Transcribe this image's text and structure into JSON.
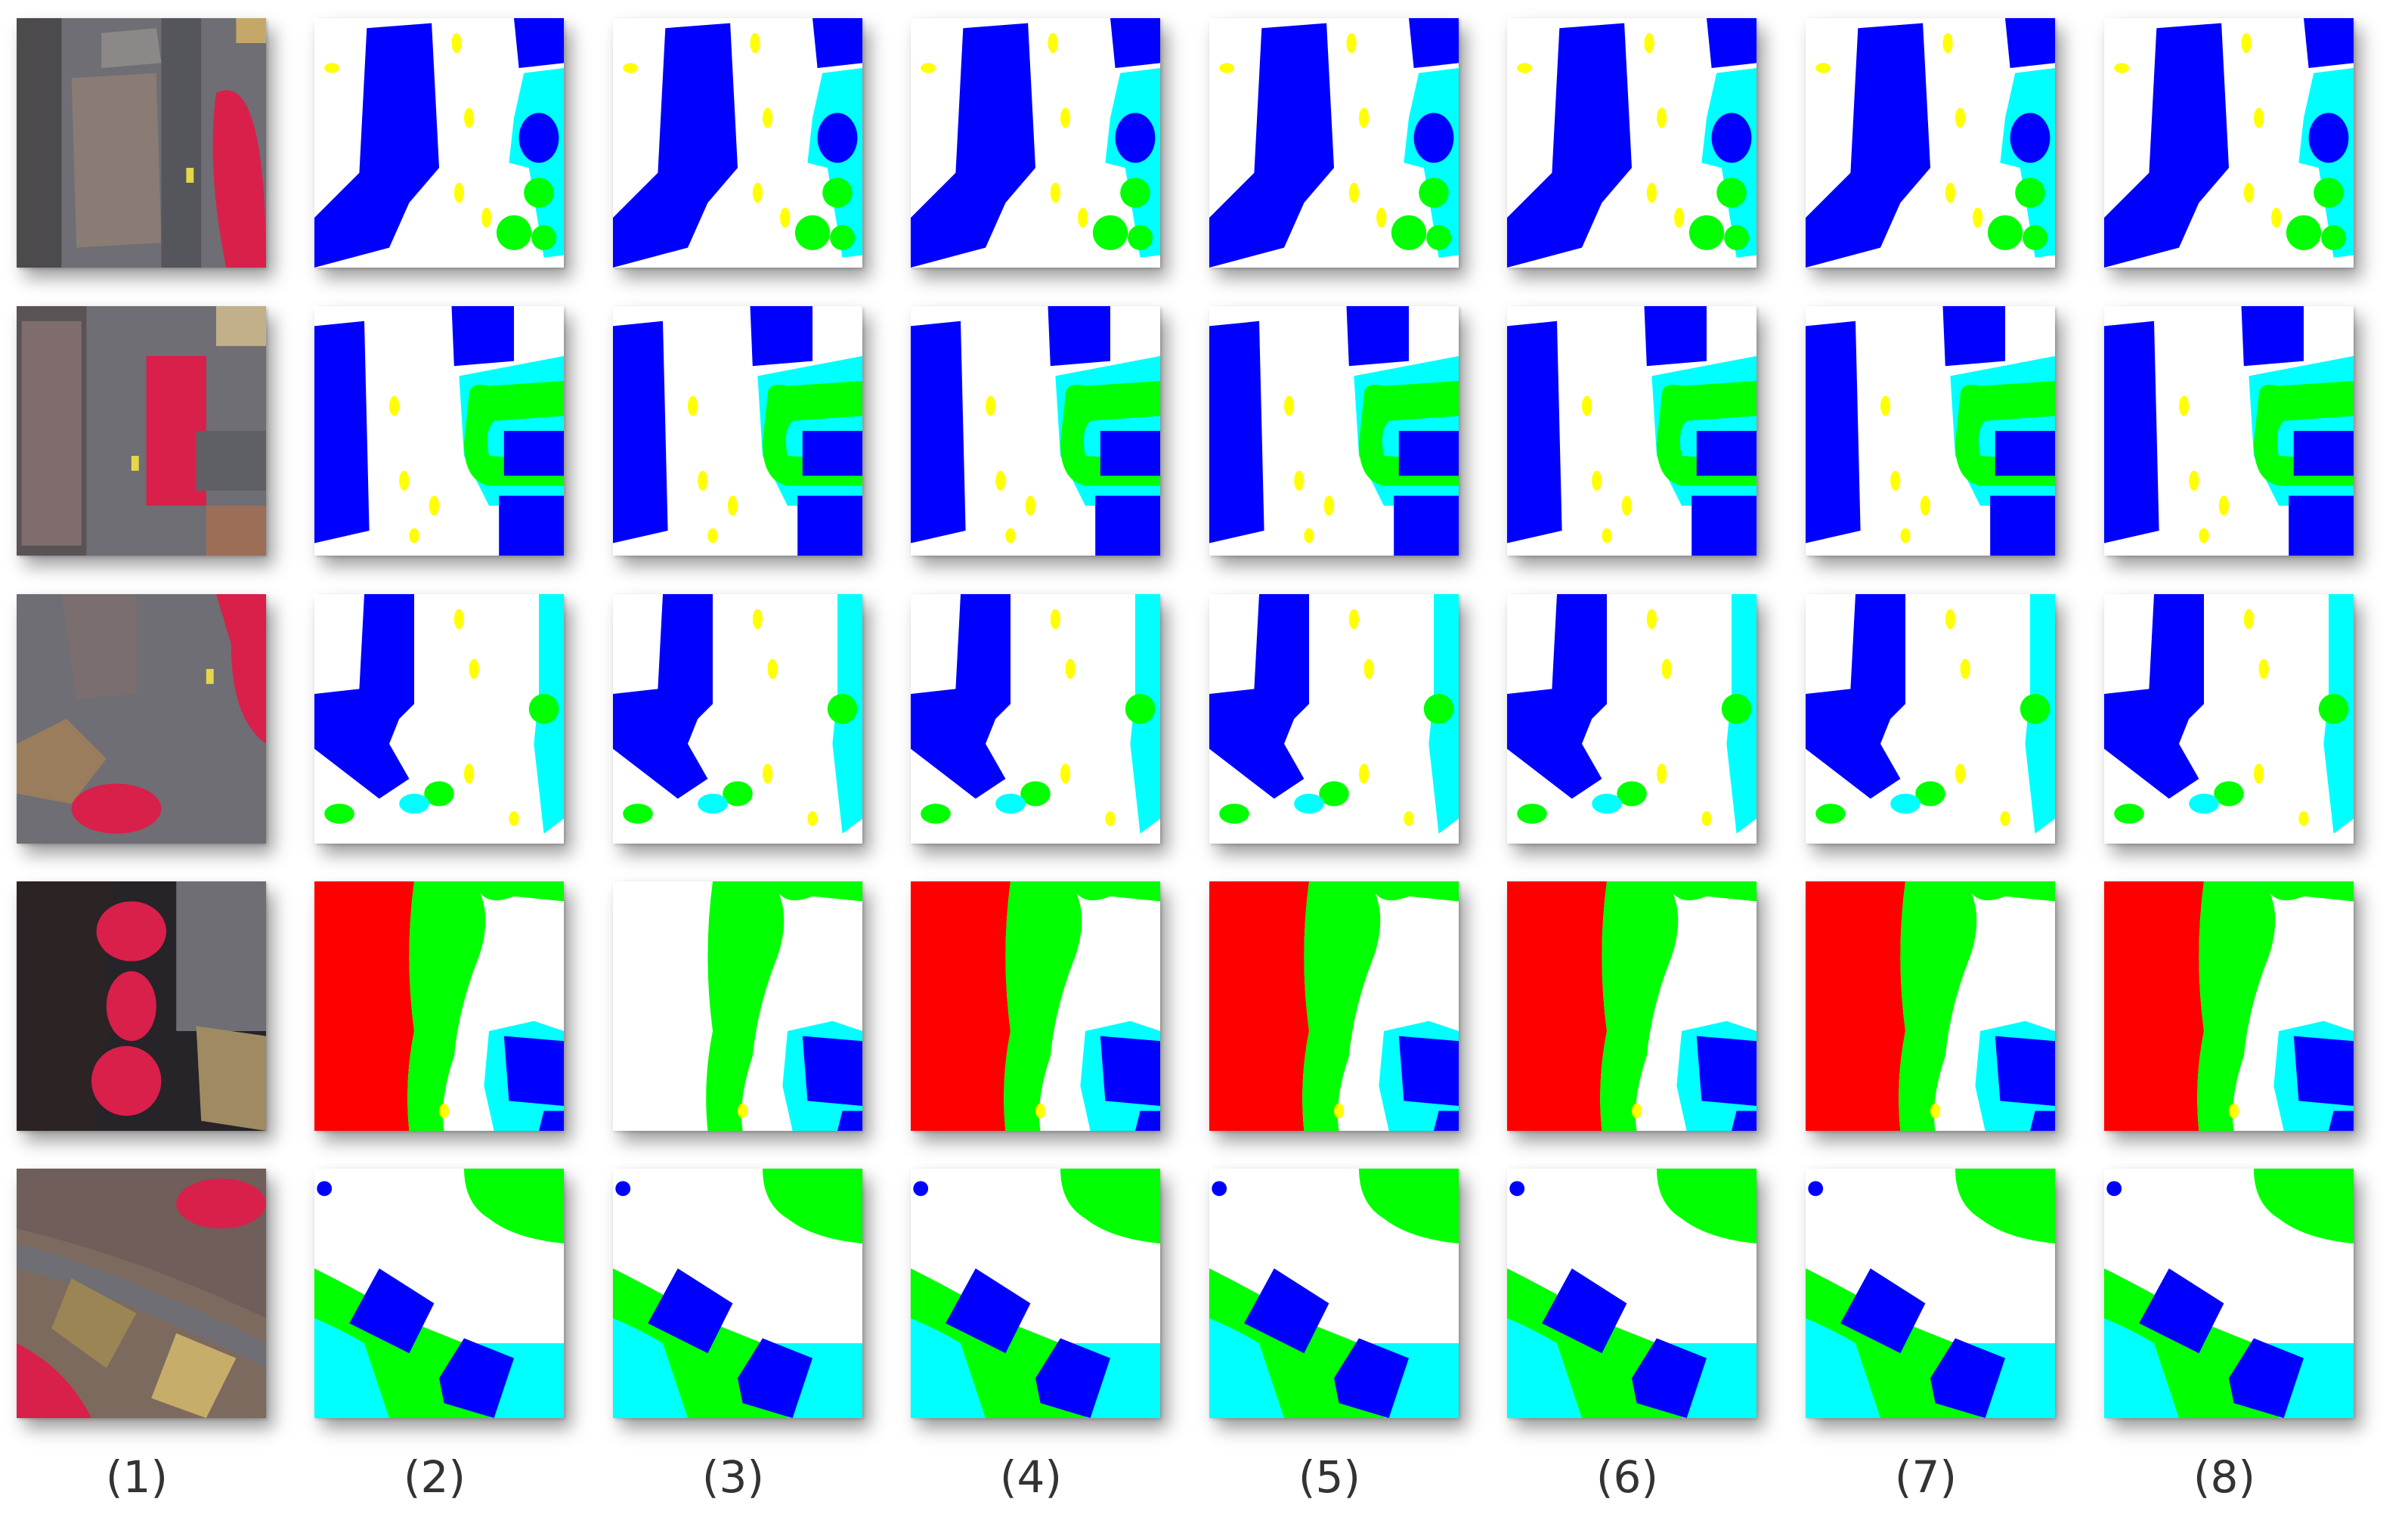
{
  "figure": {
    "column_labels": [
      "(1)",
      "(2)",
      "(3)",
      "(4)",
      "(5)",
      "(6)",
      "(7)",
      "(8)"
    ],
    "row_count": 5,
    "column_count": 8,
    "tile_kinds": [
      "aerial-photo",
      "segmentation-map"
    ],
    "palette": {
      "impervious_surface": "#ffffff",
      "building": "#0000ff",
      "low_vegetation": "#00ffff",
      "tree": "#00ff00",
      "car": "#ffff00",
      "clutter": "#ff0000",
      "aerial_road": "#6e6e74",
      "aerial_roof": "#8a7b74",
      "aerial_vegetation": "#d8204a"
    }
  }
}
